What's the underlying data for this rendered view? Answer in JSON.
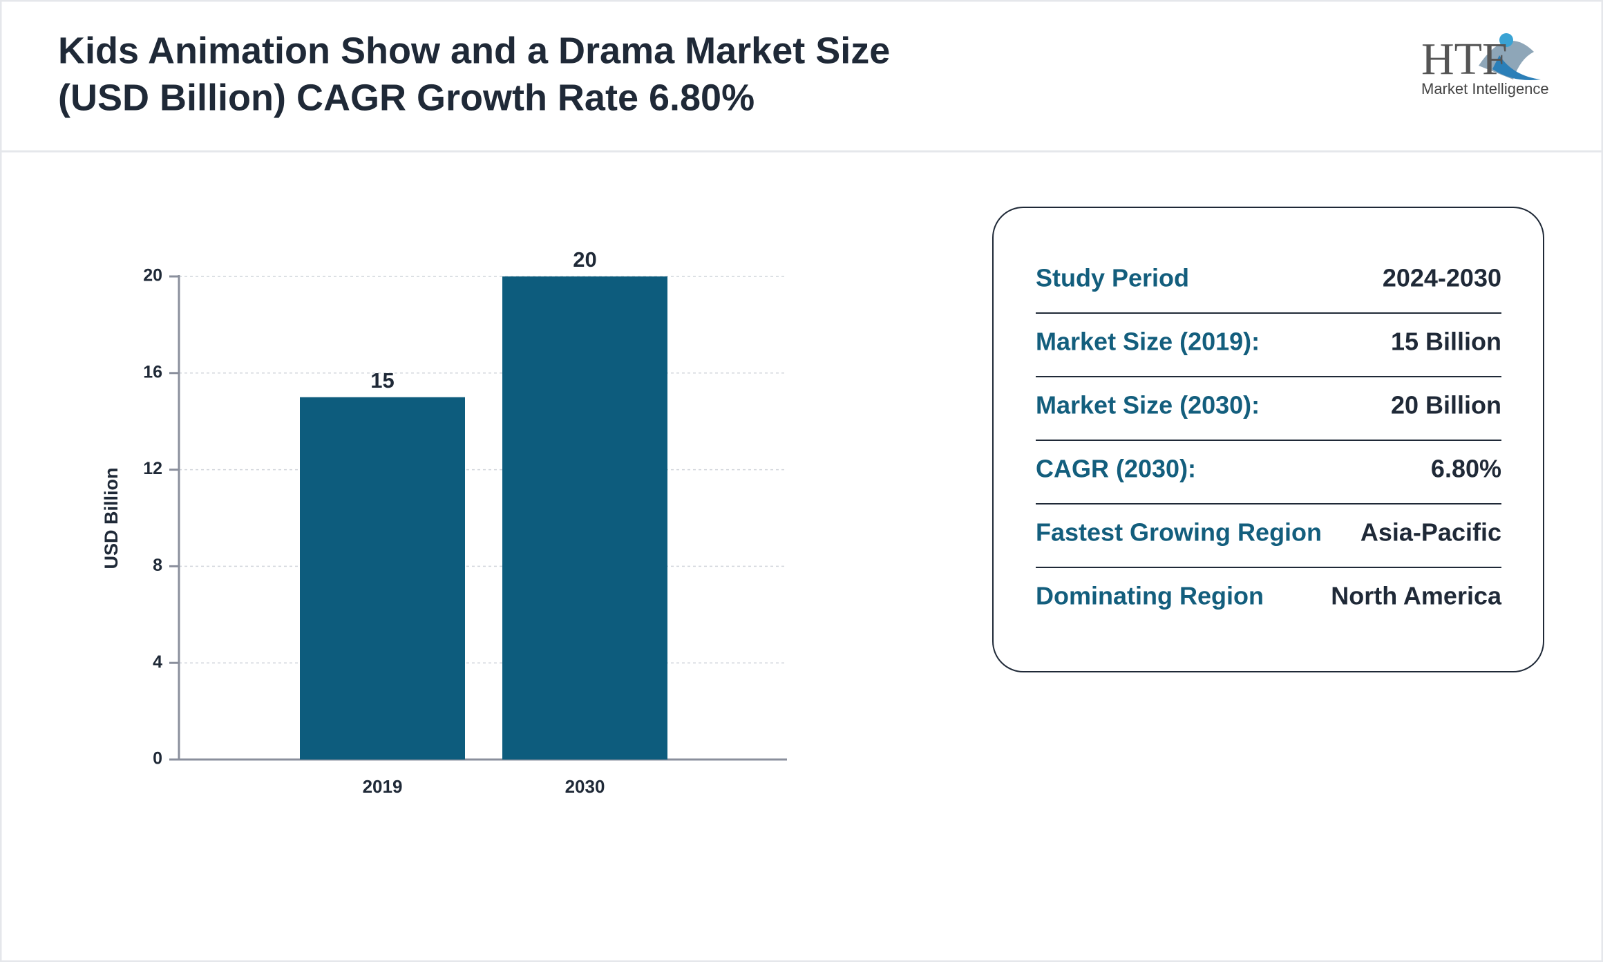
{
  "chart_data": {
    "type": "bar",
    "title": [
      "Kids Animation Show and a Drama Market Size",
      "(USD Billion) CAGR Growth Rate 6.80%"
    ],
    "categories": [
      "2019",
      "2030"
    ],
    "values": [
      15,
      20
    ],
    "color": "#0d5c7d",
    "ylabel": "USD Billion",
    "ylim": [
      0,
      20
    ],
    "yticks": [
      0,
      4,
      8,
      12,
      16,
      20
    ],
    "grid": true
  },
  "info": {
    "rows": [
      [
        "Study Period",
        "2024-2030"
      ],
      [
        "Market Size (2019):",
        "15 Billion"
      ],
      [
        "Market Size (2030):",
        "20 Billion"
      ],
      [
        "CAGR (2030):",
        "6.80%"
      ],
      [
        "Fastest Growing Region",
        "Asia-Pacific"
      ],
      [
        "Dominating Region",
        "North America"
      ]
    ]
  },
  "logo": {
    "mark": "HTF",
    "text": "Market Intelligence"
  }
}
